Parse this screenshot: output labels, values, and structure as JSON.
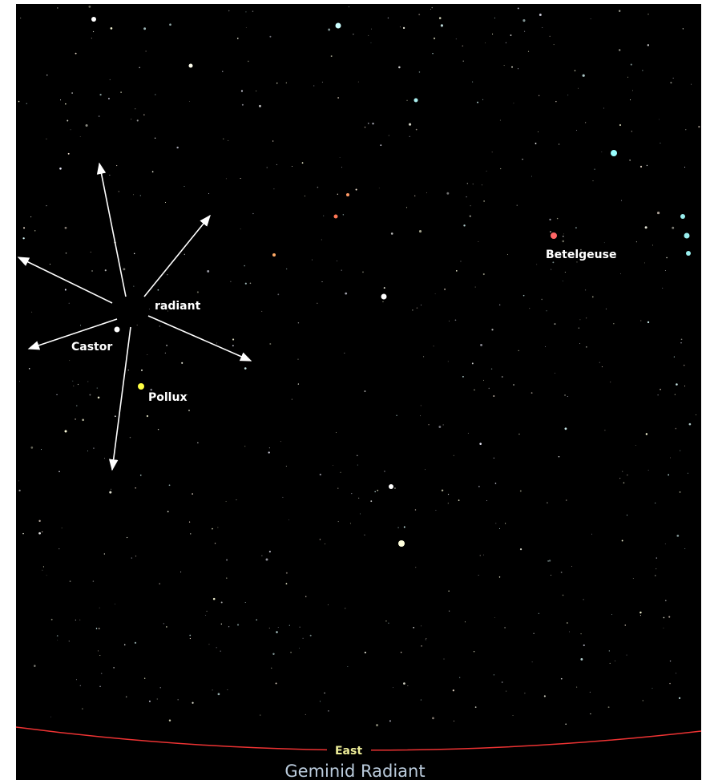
{
  "labels": {
    "radiant": "radiant",
    "castor": "Castor",
    "pollux": "Pollux",
    "betelgeuse": "Betelgeuse"
  },
  "horizon": {
    "direction": "East"
  },
  "title": "Geminid Radiant"
}
